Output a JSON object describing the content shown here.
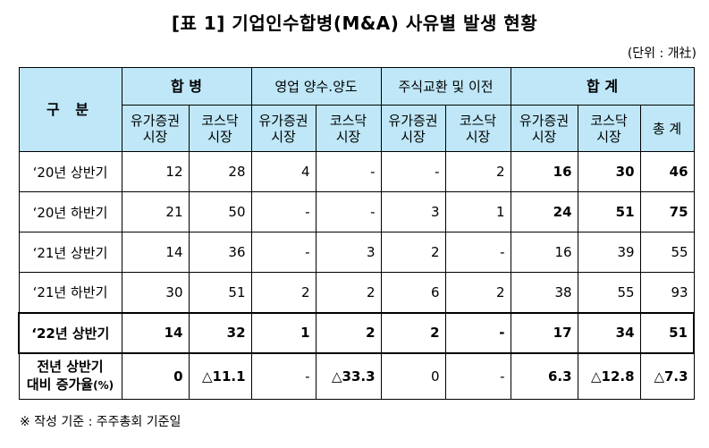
{
  "title": "[표 1] 기업인수합병(M&A) 사유별 발생 현황",
  "unit": "(단위 : 개社)",
  "header": {
    "category": "구 분",
    "groups": [
      "합 병",
      "영업 양수.양도",
      "주식교환 및 이전",
      "합 계"
    ],
    "sub": {
      "kospi_l1": "유가증권",
      "kospi_l2": "시장",
      "kosdaq_l1": "코스닥",
      "kosdaq_l2": "시장",
      "total": "총 계"
    }
  },
  "rows": [
    {
      "label": "‘20년 상반기",
      "cells": [
        "12",
        "28",
        "4",
        "-",
        "-",
        "2",
        "16",
        "30",
        "46"
      ]
    },
    {
      "label": "‘20년 하반기",
      "cells": [
        "21",
        "50",
        "-",
        "-",
        "3",
        "1",
        "24",
        "51",
        "75"
      ]
    },
    {
      "label": "‘21년 상반기",
      "cells": [
        "14",
        "36",
        "-",
        "3",
        "2",
        "-",
        "16",
        "39",
        "55"
      ]
    },
    {
      "label": "‘21년 하반기",
      "cells": [
        "30",
        "51",
        "2",
        "2",
        "6",
        "2",
        "38",
        "55",
        "93"
      ]
    },
    {
      "label": "‘22년 상반기",
      "cells": [
        "14",
        "32",
        "1",
        "2",
        "2",
        "-",
        "17",
        "34",
        "51"
      ]
    }
  ],
  "increase": {
    "label_l1": "전년 상반기",
    "label_l2": "대비 증가율",
    "label_pct": "(%)",
    "cells": [
      "0",
      "△11.1",
      "-",
      "△33.3",
      "0",
      "-",
      "6.3",
      "△12.8",
      "△7.3"
    ]
  },
  "note": "※ 작성 기준 : 주주총회 기준일"
}
